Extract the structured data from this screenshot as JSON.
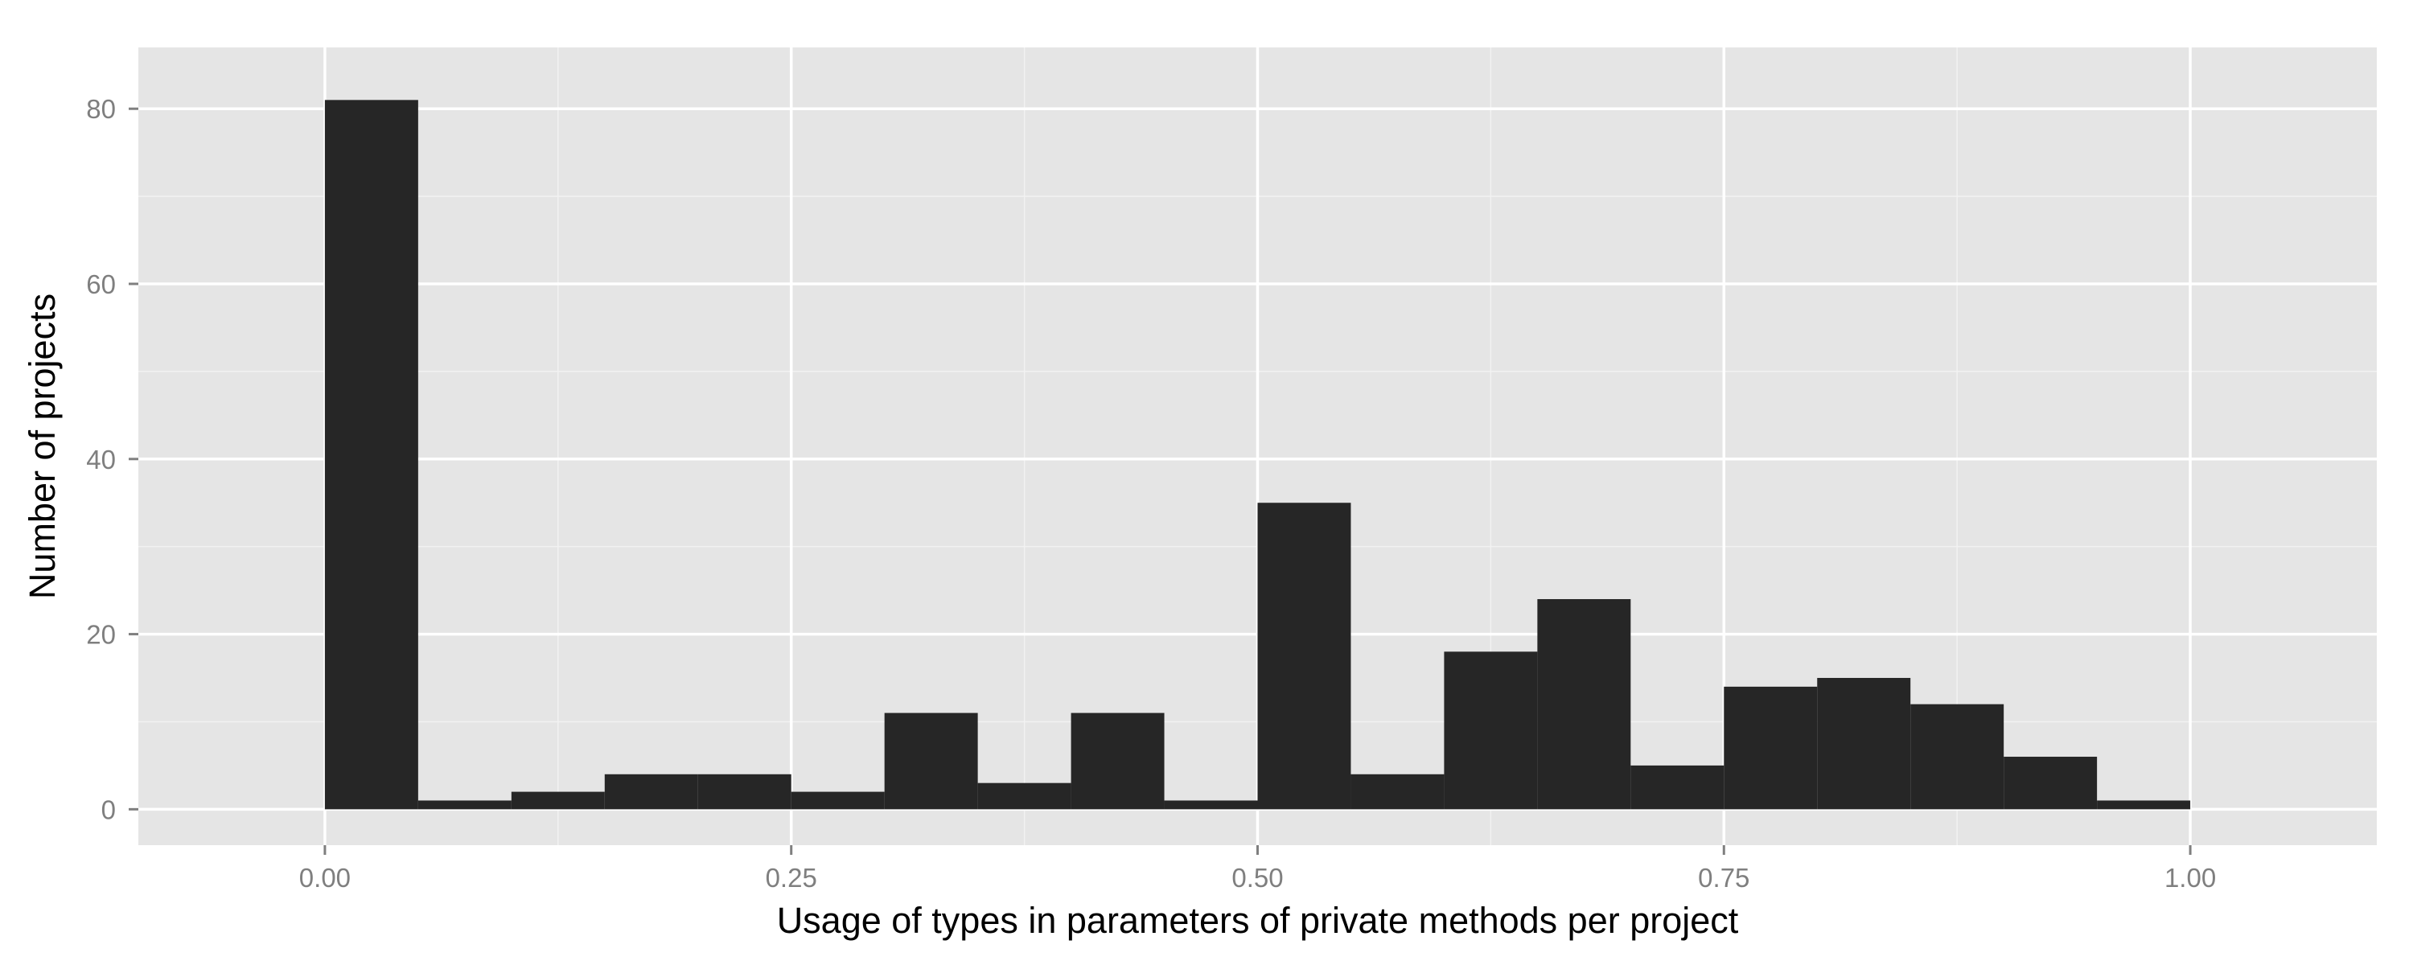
{
  "chart_data": {
    "type": "bar",
    "subtype": "histogram",
    "xlabel": "Usage of types in parameters of private methods per project",
    "ylabel": "Number of projects",
    "bin_width": 0.05,
    "bins": [
      {
        "x_start": 0.0,
        "x_end": 0.05,
        "count": 81
      },
      {
        "x_start": 0.05,
        "x_end": 0.1,
        "count": 1
      },
      {
        "x_start": 0.1,
        "x_end": 0.15,
        "count": 2
      },
      {
        "x_start": 0.15,
        "x_end": 0.2,
        "count": 4
      },
      {
        "x_start": 0.2,
        "x_end": 0.25,
        "count": 4
      },
      {
        "x_start": 0.25,
        "x_end": 0.3,
        "count": 2
      },
      {
        "x_start": 0.3,
        "x_end": 0.35,
        "count": 11
      },
      {
        "x_start": 0.35,
        "x_end": 0.4,
        "count": 3
      },
      {
        "x_start": 0.4,
        "x_end": 0.45,
        "count": 11
      },
      {
        "x_start": 0.45,
        "x_end": 0.5,
        "count": 1
      },
      {
        "x_start": 0.5,
        "x_end": 0.55,
        "count": 35
      },
      {
        "x_start": 0.55,
        "x_end": 0.6,
        "count": 4
      },
      {
        "x_start": 0.6,
        "x_end": 0.65,
        "count": 18
      },
      {
        "x_start": 0.65,
        "x_end": 0.7,
        "count": 24
      },
      {
        "x_start": 0.7,
        "x_end": 0.75,
        "count": 5
      },
      {
        "x_start": 0.75,
        "x_end": 0.8,
        "count": 14
      },
      {
        "x_start": 0.8,
        "x_end": 0.85,
        "count": 15
      },
      {
        "x_start": 0.85,
        "x_end": 0.9,
        "count": 12
      },
      {
        "x_start": 0.9,
        "x_end": 0.95,
        "count": 6
      },
      {
        "x_start": 0.95,
        "x_end": 1.0,
        "count": 1
      }
    ],
    "xlim": [
      -0.1,
      1.1
    ],
    "ylim": [
      -4.1,
      87
    ],
    "x_ticks": [
      {
        "value": 0.0,
        "label": "0.00"
      },
      {
        "value": 0.25,
        "label": "0.25"
      },
      {
        "value": 0.5,
        "label": "0.50"
      },
      {
        "value": 0.75,
        "label": "0.75"
      },
      {
        "value": 1.0,
        "label": "1.00"
      }
    ],
    "y_ticks": [
      {
        "value": 0,
        "label": "0"
      },
      {
        "value": 20,
        "label": "20"
      },
      {
        "value": 40,
        "label": "40"
      },
      {
        "value": 60,
        "label": "60"
      },
      {
        "value": 80,
        "label": "80"
      }
    ],
    "grid": true,
    "legend": "none",
    "colors": {
      "panel_background": "#e5e5e5",
      "grid_major": "#ffffff",
      "grid_minor": "#f2f2f2",
      "bar_fill": "#262626",
      "tick_label": "#7f7f7f",
      "tick_mark": "#7f7f7f",
      "axis_title": "#000000"
    }
  }
}
